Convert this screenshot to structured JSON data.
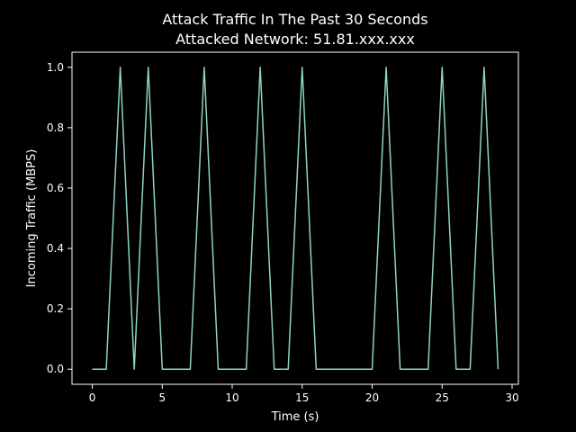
{
  "chart_data": {
    "type": "line",
    "title": "Attack Traffic In The Past 30 Seconds",
    "subtitle": "Attacked Network: 51.81.xxx.xxx",
    "xlabel": "Time (s)",
    "ylabel": "Incoming Traffic (MBPS)",
    "xlim": [
      -1.45,
      30.45
    ],
    "ylim": [
      -0.05,
      1.05
    ],
    "xticks": [
      0,
      5,
      10,
      15,
      20,
      25,
      30
    ],
    "yticks": [
      0.0,
      0.2,
      0.4,
      0.6,
      0.8,
      1.0
    ],
    "xtick_labels": [
      "0",
      "5",
      "10",
      "15",
      "20",
      "25",
      "30"
    ],
    "ytick_labels": [
      "0.0",
      "0.2",
      "0.4",
      "0.6",
      "0.8",
      "1.0"
    ],
    "grid": false,
    "series": [
      {
        "color": "#8dd3c7",
        "x": [
          0,
          1,
          2,
          3,
          4,
          5,
          6,
          7,
          8,
          9,
          10,
          11,
          12,
          13,
          14,
          15,
          16,
          17,
          18,
          19,
          20,
          21,
          22,
          23,
          24,
          25,
          26,
          27,
          28,
          29
        ],
        "values": [
          0,
          0,
          1,
          0,
          1,
          0,
          0,
          0,
          1,
          0,
          0,
          0,
          1,
          0,
          0,
          1,
          0,
          0,
          0,
          0,
          0,
          1,
          0,
          0,
          0,
          1,
          0,
          0,
          1,
          0
        ]
      }
    ]
  },
  "colors": {
    "background": "#000000",
    "foreground": "#ffffff",
    "line": "#8dd3c7"
  }
}
